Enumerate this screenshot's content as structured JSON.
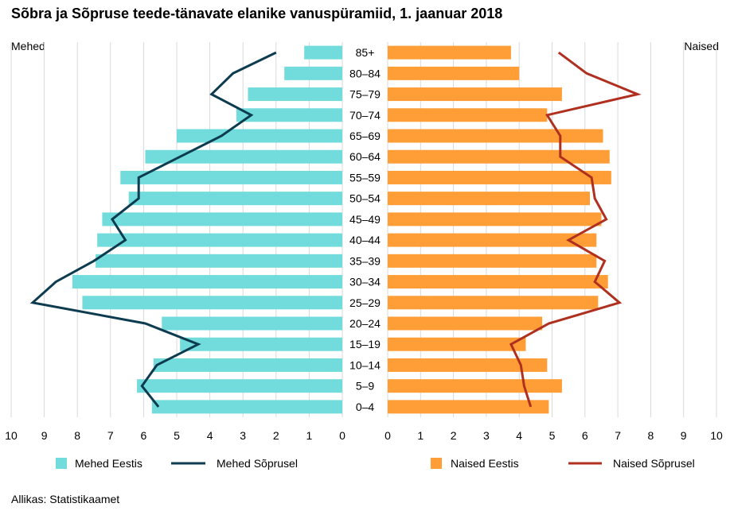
{
  "title": "Sõbra ja Sõpruse teede-tänavate elanike vanuspüramiid, 1. jaanuar 2018",
  "left_label": "Mehed",
  "right_label": "Naised",
  "source": "Allikas: Statistikaamet",
  "colors": {
    "men_bar": "#72dcdc",
    "men_line": "#0d3b50",
    "women_bar": "#ff9e36",
    "women_line": "#b03020",
    "grid": "#d9d9d9"
  },
  "chart_data": {
    "type": "bar",
    "orientation": "horizontal",
    "categories": [
      "85+",
      "80–84",
      "75–79",
      "70–74",
      "65–69",
      "60–64",
      "55–59",
      "50–54",
      "45–49",
      "40–44",
      "35–39",
      "30–34",
      "25–29",
      "20–24",
      "15–19",
      "10–14",
      "5–9",
      "0–4"
    ],
    "xlim": [
      0,
      10
    ],
    "ticks": [
      "0",
      "1",
      "2",
      "3",
      "4",
      "5",
      "6",
      "7",
      "8",
      "9",
      "10"
    ],
    "series": [
      {
        "name": "Mehed Eestis",
        "side": "left",
        "kind": "bar",
        "values": [
          1.15,
          1.75,
          2.85,
          3.2,
          5.0,
          5.95,
          6.7,
          6.45,
          7.25,
          7.4,
          7.45,
          8.15,
          7.85,
          5.45,
          4.9,
          5.7,
          6.2,
          5.75
        ]
      },
      {
        "name": "Mehed Sõprusel",
        "side": "left",
        "kind": "line",
        "values": [
          2.0,
          3.3,
          3.95,
          2.75,
          3.65,
          4.9,
          6.15,
          6.15,
          6.95,
          6.55,
          7.5,
          8.65,
          9.35,
          5.95,
          4.35,
          5.6,
          6.05,
          5.55
        ]
      },
      {
        "name": "Naised Eestis",
        "side": "right",
        "kind": "bar",
        "values": [
          3.75,
          4.0,
          5.3,
          4.85,
          6.55,
          6.75,
          6.8,
          6.15,
          6.5,
          6.35,
          6.35,
          6.7,
          6.4,
          4.7,
          4.2,
          4.85,
          5.3,
          4.9
        ]
      },
      {
        "name": "Naised Sõprusel",
        "side": "right",
        "kind": "line",
        "values": [
          5.2,
          6.05,
          7.6,
          4.85,
          5.25,
          5.25,
          6.2,
          6.3,
          6.65,
          5.5,
          6.6,
          6.3,
          7.05,
          4.9,
          3.75,
          4.05,
          4.15,
          4.35
        ]
      }
    ]
  }
}
